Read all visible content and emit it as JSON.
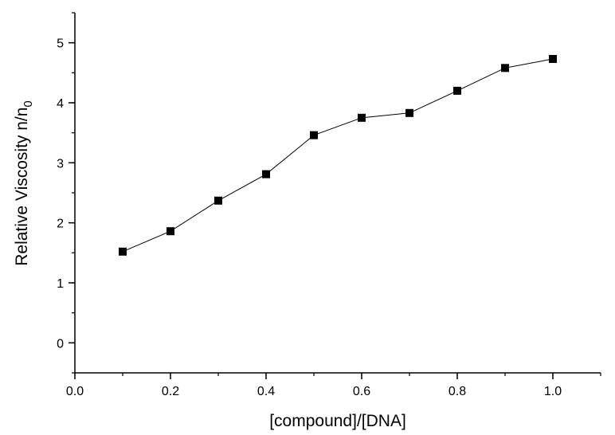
{
  "chart_data": {
    "type": "line",
    "title": "",
    "xlabel": "[compound]/[DNA]",
    "ylabel_main": "Relative Viscosity n/n",
    "ylabel_sub": "0",
    "xlim": [
      0.0,
      1.1
    ],
    "ylim": [
      -0.5,
      5.5
    ],
    "x_ticks": [
      "0.0",
      "0.2",
      "0.4",
      "0.6",
      "0.8",
      "1.0"
    ],
    "x_tick_values": [
      0.0,
      0.2,
      0.4,
      0.6,
      0.8,
      1.0
    ],
    "y_ticks": [
      "0",
      "1",
      "2",
      "3",
      "4",
      "5"
    ],
    "y_tick_values": [
      0,
      1,
      2,
      3,
      4,
      5
    ],
    "x_minor_step": 0.1,
    "y_minor_step": 0.5,
    "grid": false,
    "legend": "none",
    "marker": "square",
    "color": "#000000",
    "series": [
      {
        "x": [
          0.1,
          0.2,
          0.3,
          0.4,
          0.5,
          0.6,
          0.7,
          0.8,
          0.9,
          1.0
        ],
        "y": [
          1.52,
          1.86,
          2.37,
          2.81,
          3.46,
          3.75,
          3.83,
          4.2,
          4.58,
          4.73
        ]
      }
    ]
  }
}
